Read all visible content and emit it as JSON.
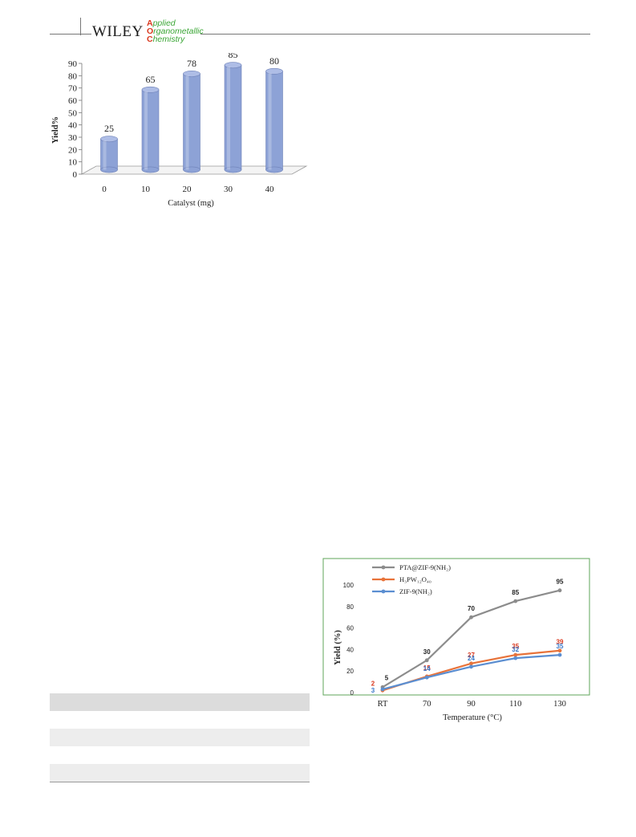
{
  "header": {
    "publisher": "WILEY",
    "journal_lines": [
      {
        "cap": "A",
        "rest": "pplied"
      },
      {
        "cap": "O",
        "rest": "rganometallic"
      },
      {
        "cap": "C",
        "rest": "hemistry"
      }
    ]
  },
  "colors": {
    "bar_fill": "#8da2d6",
    "bar_top": "#aebde6",
    "line_ptr": "#8c8c8c",
    "line_h3": "#e8733a",
    "line_zif": "#5b8ed1",
    "frame_green": "#5fa55a",
    "label_red": "#d9381e",
    "label_blue": "#3a78c9"
  },
  "chart_data": [
    {
      "type": "bar",
      "categories": [
        "0",
        "10",
        "20",
        "30",
        "40"
      ],
      "values": [
        25,
        65,
        78,
        85,
        80
      ],
      "data_labels": [
        "25",
        "65",
        "78",
        "85",
        "80"
      ],
      "xlabel": "Catalyst (mg)",
      "ylabel": "Yield%",
      "ylim": [
        0,
        90
      ],
      "yticks": [
        "0",
        "10",
        "20",
        "30",
        "40",
        "50",
        "60",
        "70",
        "80",
        "90"
      ],
      "style": "3d-cylinder"
    },
    {
      "type": "line",
      "categories": [
        "RT",
        "70",
        "90",
        "110",
        "130"
      ],
      "xlabel": "Temperature (°C)",
      "ylabel": "Yield (%)",
      "ylim": [
        0,
        100
      ],
      "yticks": [
        "0",
        "20",
        "40",
        "60",
        "80",
        "100"
      ],
      "legend": "top-left",
      "series": [
        {
          "name": "PTA@ZIF-9(NH₂)",
          "values": [
            5,
            30,
            70,
            85,
            95
          ],
          "labels": [
            "5",
            "30",
            "70",
            "85",
            "95"
          ]
        },
        {
          "name": "H₃PW₁₂O₄₀",
          "values": [
            2,
            15,
            27,
            35,
            39
          ],
          "labels": [
            "2",
            "15",
            "27",
            "35",
            "39"
          ]
        },
        {
          "name": "ZIF-9(NH₂)",
          "values": [
            3,
            14,
            24,
            32,
            35
          ],
          "labels": [
            "3",
            "14",
            "24",
            "32",
            "35"
          ]
        }
      ]
    }
  ]
}
